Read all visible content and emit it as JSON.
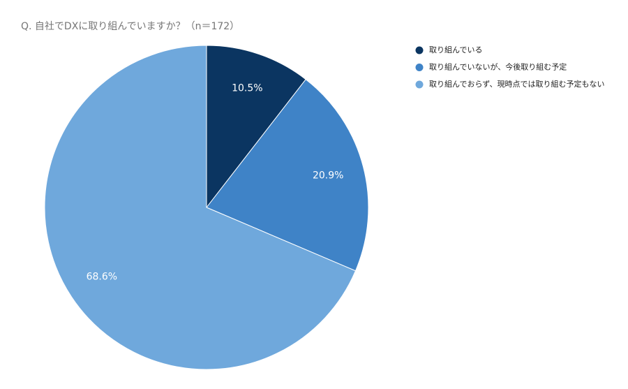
{
  "chart_data": {
    "type": "pie",
    "title": "Q.  自社でDXに取り組んでいますか？（n＝172）",
    "categories": [
      "取り組んでいる",
      "取り組んでいないが、今後取り組む予定",
      "取り組んでおらず、現時点では取り組む予定もない"
    ],
    "values": [
      10.5,
      20.9,
      68.6
    ],
    "value_labels": [
      "10.5%",
      "20.9%",
      "68.6%"
    ],
    "colors": [
      "#0b3561",
      "#3f83c7",
      "#6fa8dc"
    ],
    "legend": "right"
  }
}
